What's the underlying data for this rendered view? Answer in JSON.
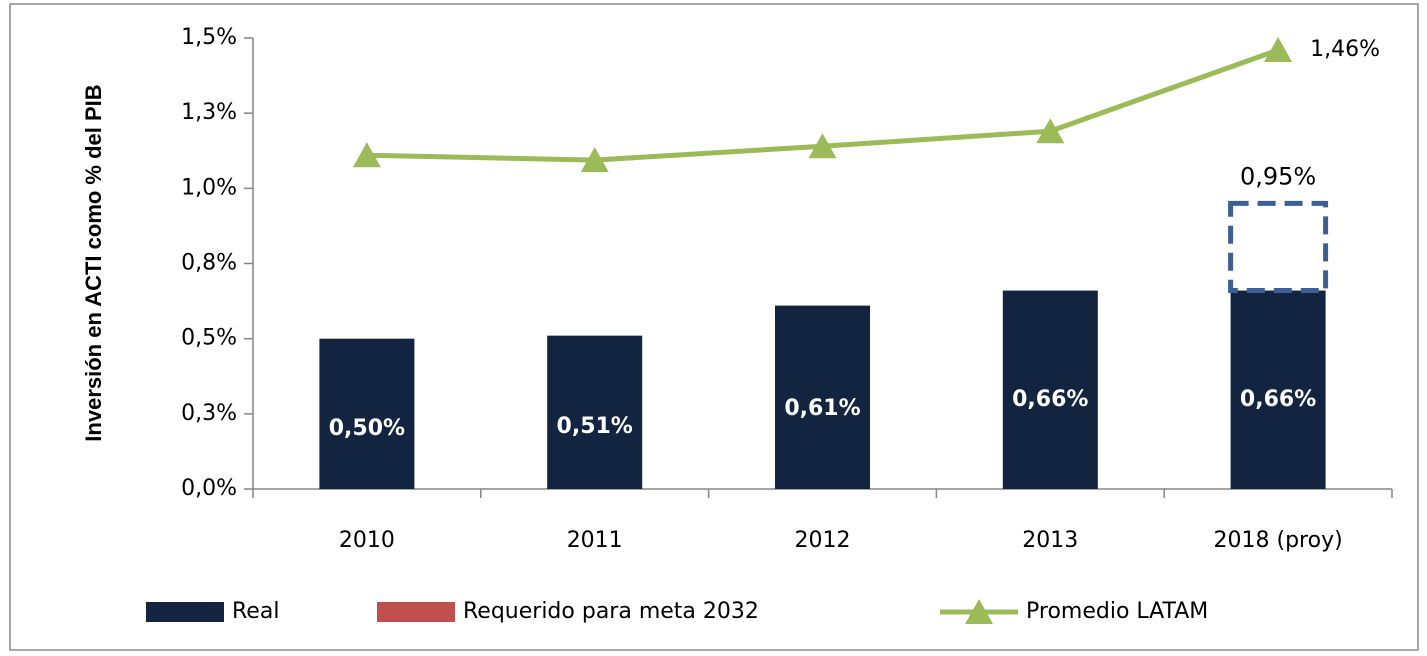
{
  "chart_data": {
    "type": "bar",
    "y_label": "Inversión en ACTI como % del PIB",
    "categories": [
      "2010",
      "2011",
      "2012",
      "2013",
      "2018 (proy)"
    ],
    "series": [
      {
        "name": "Real",
        "type": "bar",
        "color": "#12243f",
        "values": [
          0.5,
          0.51,
          0.61,
          0.66,
          0.66
        ],
        "value_labels": [
          "0,50%",
          "0,51%",
          "0,61%",
          "0,66%",
          "0,66%"
        ]
      },
      {
        "name": "Requerido para meta 2032",
        "type": "target",
        "color": "#c0504d",
        "outline_color": "#3b5f94",
        "values": [
          null,
          null,
          null,
          null,
          0.95
        ],
        "value_labels": [
          null,
          null,
          null,
          null,
          "0,95%"
        ]
      },
      {
        "name": "Promedio LATAM",
        "type": "line",
        "color": "#9bbb59",
        "values": [
          1.11,
          1.094,
          1.14,
          1.19,
          1.46
        ],
        "value_labels": [
          null,
          null,
          null,
          null,
          "1,46%"
        ]
      }
    ],
    "ylim": [
      0,
      1.5
    ],
    "yticks": [
      {
        "value": 0,
        "label": "0,0%"
      },
      {
        "value": 0.25,
        "label": "0,3%"
      },
      {
        "value": 0.5,
        "label": "0,5%"
      },
      {
        "value": 0.75,
        "label": "0,8%"
      },
      {
        "value": 1.0,
        "label": "1,0%"
      },
      {
        "value": 1.25,
        "label": "1,3%"
      },
      {
        "value": 1.5,
        "label": "1,5%"
      }
    ],
    "legend": "bottom"
  }
}
